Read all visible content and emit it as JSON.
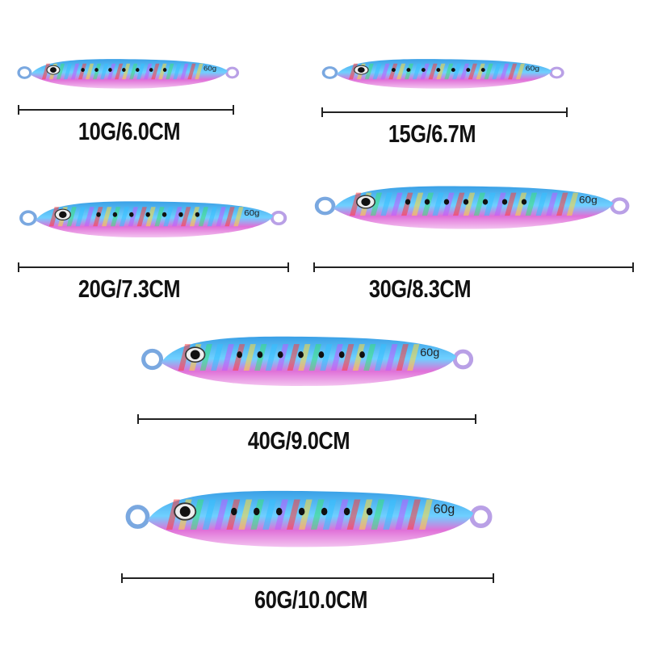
{
  "lure_imprint": "60g",
  "colors": {
    "back": "#3aa0e6",
    "belly": "#e070d8",
    "text": "#111111"
  },
  "variants": [
    {
      "label": "10G/6.0CM"
    },
    {
      "label": "15G/6.7M"
    },
    {
      "label": "20G/7.3CM"
    },
    {
      "label": "30G/8.3CM"
    },
    {
      "label": "40G/9.0CM"
    },
    {
      "label": "60G/10.0CM"
    }
  ]
}
